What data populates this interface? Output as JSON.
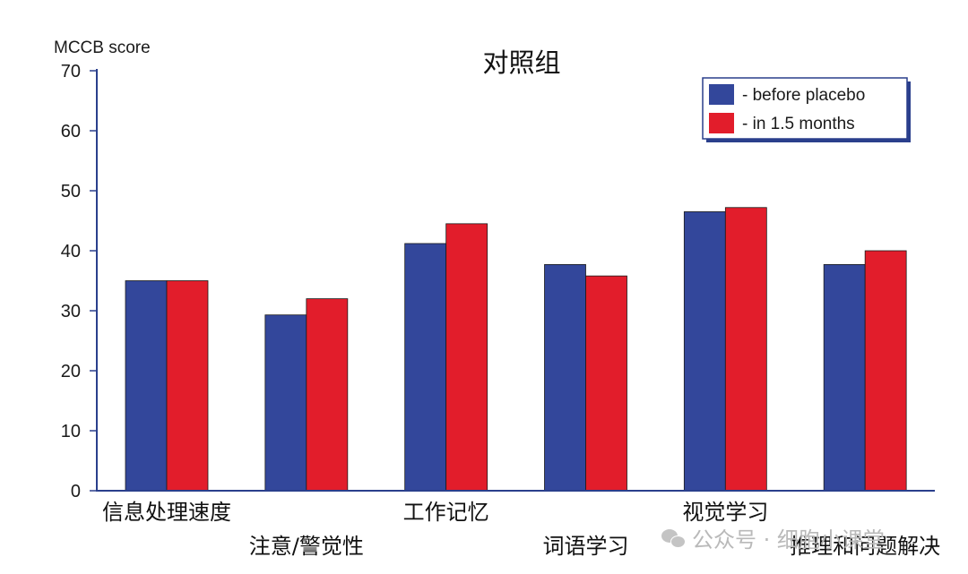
{
  "chart_data": {
    "type": "bar",
    "title": "对照组",
    "ylabel": "MCCB score",
    "xlabel": "",
    "ylim": [
      0,
      70
    ],
    "yticks": [
      0,
      10,
      20,
      30,
      40,
      50,
      60,
      70
    ],
    "categories": [
      "信息处理速度",
      "注意/警觉性",
      "工作记忆",
      "词语学习",
      "视觉学习",
      "推理和问题解决"
    ],
    "series": [
      {
        "name": "- before placebo",
        "color": "#33479b",
        "values": [
          35,
          29.3,
          41.2,
          37.7,
          46.5,
          37.7
        ]
      },
      {
        "name": "- in 1.5 months",
        "color": "#e21d2b",
        "values": [
          35,
          32,
          44.5,
          35.8,
          47.2,
          40
        ]
      }
    ],
    "legend_position": "top-right",
    "grid": false
  },
  "watermark": {
    "icon": "wechat-icon",
    "text": "公众号 · 细胞小课堂"
  }
}
